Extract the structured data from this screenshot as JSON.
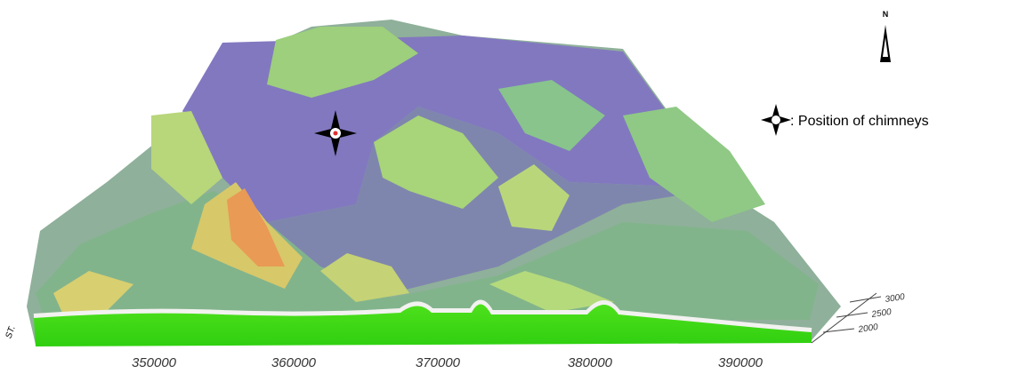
{
  "map": {
    "north_label": "N",
    "legend": {
      "label": ": Position of chimneys"
    },
    "x_axis": {
      "ticks": [
        350000,
        360000,
        370000,
        380000,
        390000
      ]
    },
    "z_axis": {
      "ticks": [
        3000,
        2500,
        2000
      ]
    },
    "corner_label": "ST."
  }
}
